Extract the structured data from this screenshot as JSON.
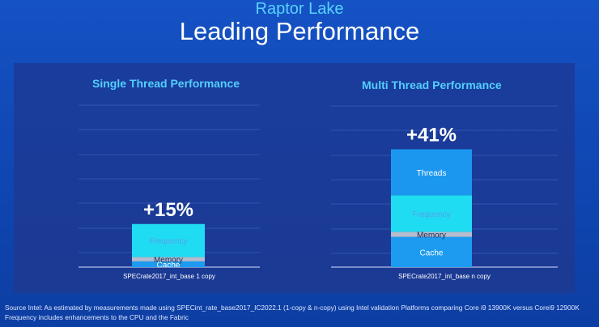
{
  "header": {
    "subtitle": "Raptor Lake",
    "title": "Leading Performance"
  },
  "colors": {
    "cache": "#1c9bf0",
    "memory": "#b4bccd",
    "frequency": "#1fdcf3",
    "threads": "#1b97f0"
  },
  "chart_data": [
    {
      "type": "bar",
      "stacked": true,
      "title": "Single Thread Performance",
      "xlabel": "SPECrate2017_int_base 1 copy",
      "total_label": "+15%",
      "total": 15,
      "segments": [
        {
          "name": "Cache",
          "value": 2.0
        },
        {
          "name": "Memory",
          "value": 1.5
        },
        {
          "name": "Frequency",
          "value": 11.5
        }
      ]
    },
    {
      "type": "bar",
      "stacked": true,
      "title": "Multi Thread Performance",
      "xlabel": "SPECrate2017_int_base n copy",
      "total_label": "+41%",
      "total": 41,
      "segments": [
        {
          "name": "Cache",
          "value": 10.5
        },
        {
          "name": "Memory",
          "value": 1.8
        },
        {
          "name": "Frequency",
          "value": 12.7
        },
        {
          "name": "Threads",
          "value": 16
        }
      ]
    }
  ],
  "footnote": {
    "line1": "Source Intel: As estimated by measurements made using  SPECint_rate_base2017_IC2022.1 (1-copy & n-copy) using Intel validation Platforms comparing Core i9 13900K versus Corei9 12900K",
    "line2": "Frequency includes enhancements to the CPU and the Fabric"
  }
}
